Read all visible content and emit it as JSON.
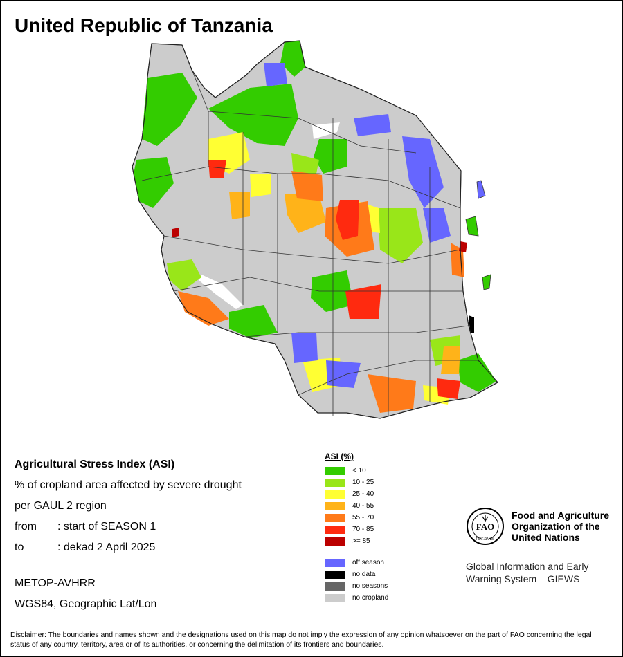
{
  "title": "United Republic of Tanzania",
  "info": {
    "heading": "Agricultural Stress Index (ASI)",
    "line1": "% of cropland area affected by severe drought",
    "line2": "per GAUL 2 region",
    "from_key": "from",
    "from_val": ": start of SEASON 1",
    "to_key": "to",
    "to_val": ": dekad 2 April 2025",
    "sensor": "METOP-AVHRR",
    "projection": "WGS84, Geographic Lat/Lon"
  },
  "legend": {
    "title": "ASI (%)",
    "classes": [
      {
        "label": "< 10",
        "color": "#33cc00"
      },
      {
        "label": "10 - 25",
        "color": "#99e619"
      },
      {
        "label": "25 - 40",
        "color": "#ffff33"
      },
      {
        "label": "40 - 55",
        "color": "#ffb319"
      },
      {
        "label": "55 - 70",
        "color": "#ff7a19"
      },
      {
        "label": "70 - 85",
        "color": "#ff2a0f"
      },
      {
        "label": ">= 85",
        "color": "#bb0000"
      }
    ],
    "other": [
      {
        "label": "off season",
        "color": "#6666ff"
      },
      {
        "label": "no data",
        "color": "#000000"
      },
      {
        "label": "no seasons",
        "color": "#666666"
      },
      {
        "label": "no cropland",
        "color": "#cccccc"
      }
    ]
  },
  "fao": {
    "org_line1": "Food and Agriculture",
    "org_line2": "Organization of the",
    "org_line3": "United Nations",
    "emblem_text": "FIAT PANIS",
    "giews_line1": "Global Information and Early",
    "giews_line2": "Warning System – GIEWS"
  },
  "disclaimer": "Disclaimer: The boundaries and names shown and the designations used on this map do not imply the expression of any opinion whatsoever on the part of FAO concerning the legal status of any country, territory, area or of its authorities, or concerning the delimitation of its frontiers and boundaries."
}
